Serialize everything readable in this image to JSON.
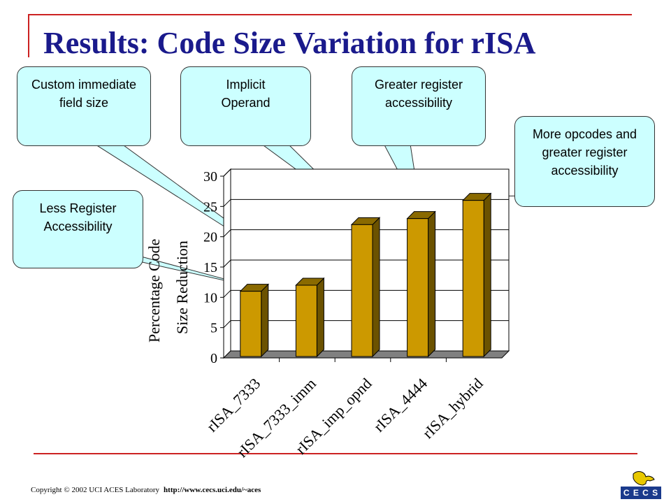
{
  "slide": {
    "title": "Results: Code Size Variation for rISA",
    "footer_copyright": "Copyright © 2002 UCI ACES Laboratory",
    "footer_url": "http://www.cecs.uci.edu/~aces",
    "logo_text": "C E C S"
  },
  "callouts": [
    {
      "id": "less-register",
      "text": "Less Register Accessibility",
      "target": "rISA_7333"
    },
    {
      "id": "custom-immediate",
      "text": "Custom immediate field size",
      "target": "rISA_7333_imm"
    },
    {
      "id": "implicit-operand",
      "text": "Implicit Operand",
      "target": "rISA_imp_opnd"
    },
    {
      "id": "greater-register",
      "text": "Greater register accessibility",
      "target": "rISA_4444"
    },
    {
      "id": "more-opcodes",
      "text": "More opcodes and greater register accessibility",
      "target": "rISA_hybrid"
    }
  ],
  "chart_data": {
    "type": "bar",
    "categories": [
      "rISA_7333",
      "rISA_7333_imm",
      "rISA_imp_opnd",
      "rISA_4444",
      "rISA_hybrid"
    ],
    "values": [
      11,
      12,
      22,
      23,
      26
    ],
    "title": "",
    "xlabel": "",
    "ylabel": "Percentage Code Size Reduction",
    "ylim": [
      0,
      30
    ],
    "yticks": [
      0,
      5,
      10,
      15,
      20,
      25,
      30
    ],
    "bar_color": "#cc9900",
    "grid": true,
    "legend": "none"
  },
  "colors": {
    "title": "#1a1a8c",
    "rule": "#cc2222",
    "callout_fill": "#ccffff"
  }
}
